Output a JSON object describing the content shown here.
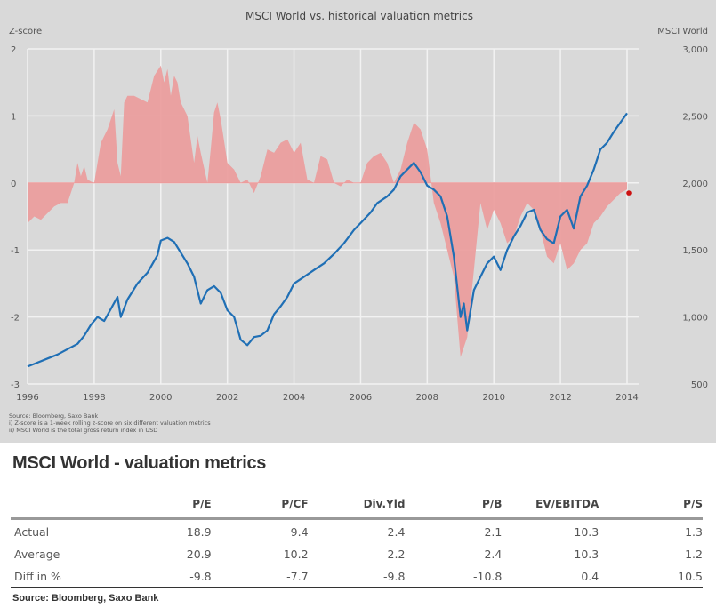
{
  "chart_data": {
    "type": "area",
    "title": "MSCI World vs. historical valuation metrics",
    "ylabel_left": "Z-score",
    "ylabel_right": "MSCI World",
    "ylim_left": [
      -3,
      2
    ],
    "ylim_right": [
      500,
      3000
    ],
    "xlim": [
      1996,
      2014.4
    ],
    "grid": true,
    "x_ticks": [
      "1996",
      "1998",
      "2000",
      "2002",
      "2004",
      "2006",
      "2008",
      "2010",
      "2012",
      "2014"
    ],
    "y_ticks_left": [
      "2",
      "1",
      "0",
      "-1",
      "-2",
      "-3"
    ],
    "y_ticks_right": [
      "3,000",
      "2,500",
      "2,000",
      "1,500",
      "1,000",
      "500"
    ],
    "series": [
      {
        "name": "Z-score",
        "kind": "area",
        "axis": "left",
        "color": "#eb9a9a",
        "x": [
          1996.0,
          1996.2,
          1996.4,
          1996.6,
          1996.8,
          1997.0,
          1997.2,
          1997.4,
          1997.5,
          1997.6,
          1997.7,
          1997.8,
          1997.9,
          1998.0,
          1998.2,
          1998.4,
          1998.6,
          1998.7,
          1998.8,
          1998.9,
          1999.0,
          1999.2,
          1999.4,
          1999.6,
          1999.8,
          2000.0,
          2000.1,
          2000.2,
          2000.3,
          2000.4,
          2000.5,
          2000.6,
          2000.8,
          2001.0,
          2001.1,
          2001.2,
          2001.4,
          2001.5,
          2001.6,
          2001.7,
          2001.8,
          2002.0,
          2002.2,
          2002.4,
          2002.6,
          2002.8,
          2003.0,
          2003.2,
          2003.4,
          2003.6,
          2003.8,
          2004.0,
          2004.2,
          2004.4,
          2004.6,
          2004.8,
          2005.0,
          2005.2,
          2005.4,
          2005.6,
          2005.8,
          2006.0,
          2006.2,
          2006.4,
          2006.6,
          2006.8,
          2007.0,
          2007.2,
          2007.4,
          2007.6,
          2007.8,
          2008.0,
          2008.2,
          2008.4,
          2008.6,
          2008.8,
          2009.0,
          2009.2,
          2009.4,
          2009.6,
          2009.8,
          2010.0,
          2010.2,
          2010.4,
          2010.6,
          2010.8,
          2011.0,
          2011.2,
          2011.4,
          2011.6,
          2011.8,
          2012.0,
          2012.2,
          2012.4,
          2012.6,
          2012.8,
          2013.0,
          2013.2,
          2013.4,
          2013.6,
          2013.8,
          2014.0
        ],
        "values": [
          -0.6,
          -0.5,
          -0.55,
          -0.45,
          -0.35,
          -0.3,
          -0.3,
          0.0,
          0.3,
          0.1,
          0.25,
          0.05,
          0.02,
          0.0,
          0.6,
          0.8,
          1.1,
          0.3,
          0.1,
          1.2,
          1.3,
          1.3,
          1.25,
          1.2,
          1.6,
          1.75,
          1.5,
          1.7,
          1.3,
          1.6,
          1.5,
          1.2,
          1.0,
          0.3,
          0.7,
          0.45,
          0.0,
          0.5,
          1.05,
          1.2,
          0.95,
          0.3,
          0.2,
          0.0,
          0.05,
          -0.15,
          0.1,
          0.5,
          0.45,
          0.6,
          0.65,
          0.45,
          0.6,
          0.05,
          0.0,
          0.4,
          0.35,
          0.0,
          -0.05,
          0.05,
          0.0,
          0.0,
          0.3,
          0.4,
          0.45,
          0.3,
          0.0,
          0.2,
          0.6,
          0.9,
          0.8,
          0.5,
          -0.3,
          -0.6,
          -1.0,
          -1.4,
          -2.6,
          -2.3,
          -1.3,
          -0.3,
          -0.7,
          -0.4,
          -0.6,
          -0.9,
          -0.8,
          -0.5,
          -0.3,
          -0.4,
          -0.7,
          -1.1,
          -1.2,
          -0.9,
          -1.3,
          -1.2,
          -1.0,
          -0.9,
          -0.6,
          -0.5,
          -0.35,
          -0.25,
          -0.15,
          -0.1
        ]
      },
      {
        "name": "MSCI World",
        "kind": "line",
        "axis": "right",
        "color": "#1f6fb5",
        "x": [
          1996.0,
          1996.3,
          1996.6,
          1996.9,
          1997.2,
          1997.5,
          1997.7,
          1997.9,
          1998.1,
          1998.3,
          1998.5,
          1998.7,
          1998.8,
          1999.0,
          1999.3,
          1999.6,
          1999.9,
          2000.0,
          2000.2,
          2000.4,
          2000.6,
          2000.8,
          2001.0,
          2001.2,
          2001.4,
          2001.6,
          2001.8,
          2002.0,
          2002.2,
          2002.4,
          2002.6,
          2002.8,
          2003.0,
          2003.2,
          2003.4,
          2003.6,
          2003.8,
          2004.0,
          2004.3,
          2004.6,
          2004.9,
          2005.2,
          2005.5,
          2005.8,
          2006.0,
          2006.3,
          2006.5,
          2006.8,
          2007.0,
          2007.2,
          2007.4,
          2007.6,
          2007.8,
          2008.0,
          2008.2,
          2008.4,
          2008.6,
          2008.8,
          2009.0,
          2009.1,
          2009.2,
          2009.4,
          2009.6,
          2009.8,
          2010.0,
          2010.2,
          2010.4,
          2010.6,
          2010.8,
          2011.0,
          2011.2,
          2011.4,
          2011.6,
          2011.8,
          2012.0,
          2012.2,
          2012.4,
          2012.6,
          2012.8,
          2013.0,
          2013.2,
          2013.4,
          2013.6,
          2013.8,
          2014.0
        ],
        "values": [
          630,
          660,
          690,
          720,
          760,
          800,
          860,
          940,
          1000,
          970,
          1060,
          1150,
          1000,
          1130,
          1250,
          1330,
          1460,
          1570,
          1590,
          1560,
          1480,
          1400,
          1300,
          1100,
          1200,
          1230,
          1180,
          1050,
          1000,
          830,
          790,
          850,
          860,
          900,
          1020,
          1080,
          1150,
          1250,
          1300,
          1350,
          1400,
          1470,
          1550,
          1650,
          1700,
          1780,
          1850,
          1900,
          1950,
          2050,
          2100,
          2150,
          2080,
          1980,
          1950,
          1900,
          1750,
          1450,
          1000,
          1100,
          900,
          1200,
          1300,
          1400,
          1450,
          1350,
          1500,
          1600,
          1680,
          1780,
          1800,
          1650,
          1580,
          1550,
          1750,
          1800,
          1660,
          1900,
          1980,
          2100,
          2250,
          2300,
          2380,
          2450,
          2520
        ]
      }
    ],
    "annotations": [
      {
        "label": "latest Z-score",
        "x": 2014.0,
        "y": -0.15,
        "color": "#cc1111"
      }
    ],
    "footnotes": [
      "Source: Bloomberg, Saxo Bank",
      "i) Z-score is a 1-week rolling z-score on six different valuation metrics",
      "ii) MSCI World is the total gross return index in USD"
    ]
  },
  "table": {
    "title": "MSCI World - valuation metrics",
    "columns": [
      "",
      "P/E",
      "P/CF",
      "Div.Yld",
      "P/B",
      "EV/EBITDA",
      "P/S"
    ],
    "rows": [
      {
        "label": "Actual",
        "values": [
          "18.9",
          "9.4",
          "2.4",
          "2.1",
          "10.3",
          "1.3"
        ]
      },
      {
        "label": "Average",
        "values": [
          "20.9",
          "10.2",
          "2.2",
          "2.4",
          "10.3",
          "1.2"
        ]
      },
      {
        "label": "Diff in %",
        "values": [
          "-9.8",
          "-7.7",
          "-9.8",
          "-10.8",
          "0.4",
          "10.5"
        ]
      }
    ],
    "source": "Source: Bloomberg, Saxo Bank"
  }
}
